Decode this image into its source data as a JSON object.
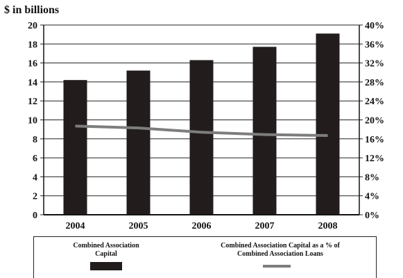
{
  "chart_data": {
    "type": "bar",
    "categories": [
      "2004",
      "2005",
      "2006",
      "2007",
      "2008"
    ],
    "series": [
      {
        "name": "Combined Association Capital",
        "type": "bar",
        "axis": "left",
        "values": [
          14.2,
          15.2,
          16.3,
          17.7,
          19.1
        ],
        "color": "#221c1c"
      },
      {
        "name": "Combined Association Capital as a % of Combined Association Loans",
        "type": "line",
        "axis": "right",
        "values": [
          18.7,
          18.3,
          17.4,
          16.9,
          16.7
        ],
        "color": "#7d7d7d"
      }
    ],
    "ylabel": "$ in billions",
    "ylim": [
      0,
      20
    ],
    "yticks": [
      "0",
      "2",
      "4",
      "6",
      "8",
      "10",
      "12",
      "14",
      "16",
      "18",
      "20"
    ],
    "y2lim": [
      0,
      40
    ],
    "y2ticks": [
      "0%",
      "4%",
      "8%",
      "12%",
      "16%",
      "20%",
      "24%",
      "28%",
      "32%",
      "36%",
      "40%"
    ],
    "grid": true,
    "legend_position": "bottom"
  },
  "legend": {
    "bar_label_line1": "Combined Association",
    "bar_label_line2": "Capital",
    "line_label_line1": "Combined Association Capital as a % of",
    "line_label_line2": "Combined Association Loans"
  }
}
